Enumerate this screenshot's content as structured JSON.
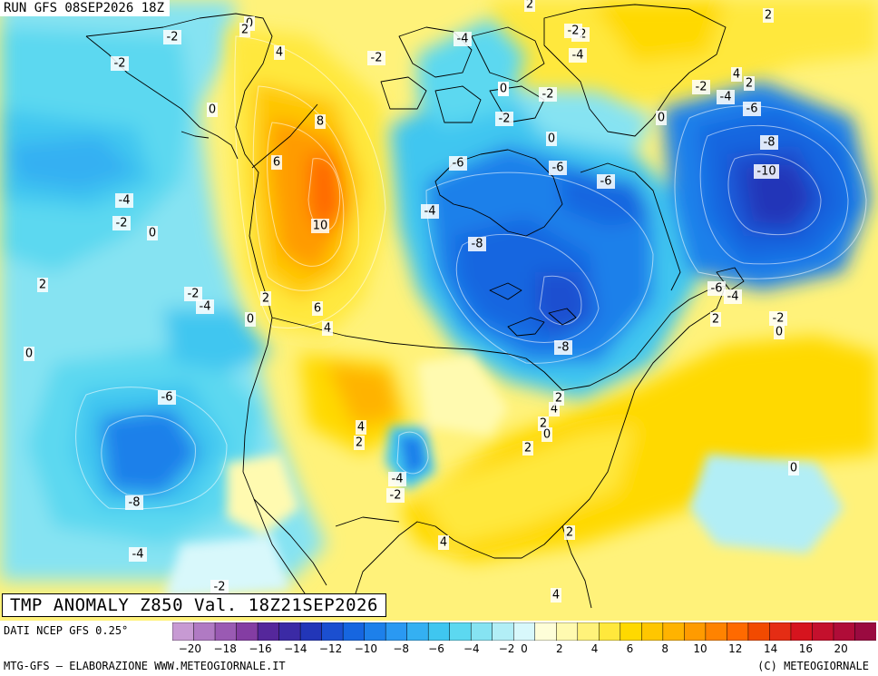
{
  "header": {
    "run_label": "RUN GFS 08SEP2026 18Z"
  },
  "title": {
    "text": "TMP ANOMALY Z850 Val. 18Z21SEP2026"
  },
  "footer": {
    "source": "DATI NCEP GFS 0.25°",
    "credit": "MTG-GFS – ELABORAZIONE WWW.METEOGIORNALE.IT",
    "copyright": "(C) METEOGIORNALE"
  },
  "colorbar": {
    "ticks": [
      "-20",
      "-18",
      "-16",
      "-14",
      "-12",
      "-10",
      "-8",
      "-6",
      "-4",
      "-2",
      "0",
      "2",
      "4",
      "6",
      "8",
      "10",
      "12",
      "14",
      "16",
      "20"
    ],
    "colors": [
      "#c79ad3",
      "#b07ac3",
      "#9a5ab3",
      "#843da3",
      "#55279b",
      "#3b2aa5",
      "#2236b8",
      "#1b4fd0",
      "#1666e0",
      "#1d80ea",
      "#2a99f2",
      "#34b0f2",
      "#3fc6f0",
      "#5cd8f0",
      "#86e3f2",
      "#b2eef6",
      "#d8f8fb",
      "#fefed8",
      "#fffab0",
      "#fff27a",
      "#ffe83c",
      "#ffd900",
      "#ffc600",
      "#ffb300",
      "#ff9b00",
      "#ff8300",
      "#ff6a00",
      "#f24a00",
      "#e52d14",
      "#d6141e",
      "#c4102d",
      "#b00c38",
      "#9a0a40"
    ],
    "tick_positions": [
      0.025,
      0.075,
      0.125,
      0.175,
      0.225,
      0.275,
      0.325,
      0.375,
      0.425,
      0.475,
      0.5,
      0.55,
      0.6,
      0.65,
      0.7,
      0.75,
      0.8,
      0.85,
      0.9,
      0.95
    ]
  },
  "contour_labels": [
    {
      "t": "0",
      "v": 0
    },
    {
      "t": "-2",
      "v": -2
    },
    {
      "t": "2",
      "v": 2
    },
    {
      "t": "-2",
      "v": -2
    },
    {
      "t": "-2",
      "v": -2
    },
    {
      "t": "4",
      "v": 4
    },
    {
      "t": "0",
      "v": 0
    },
    {
      "t": "8",
      "v": 8
    },
    {
      "t": "6",
      "v": 6
    },
    {
      "t": "-4",
      "v": -4
    },
    {
      "t": "-2",
      "v": -2
    },
    {
      "t": "0",
      "v": 0
    },
    {
      "t": "10",
      "v": 10
    },
    {
      "t": "2",
      "v": 2
    },
    {
      "t": "-2",
      "v": -2
    },
    {
      "t": "-4",
      "v": -4
    },
    {
      "t": "0",
      "v": 0
    },
    {
      "t": "2",
      "v": 2
    },
    {
      "t": "6",
      "v": 6
    },
    {
      "t": "4",
      "v": 4
    },
    {
      "t": "0",
      "v": 0
    },
    {
      "t": "-6",
      "v": -6
    },
    {
      "t": "-8",
      "v": -8
    },
    {
      "t": "-4",
      "v": -4
    },
    {
      "t": "4",
      "v": 4
    },
    {
      "t": "2",
      "v": 2
    },
    {
      "t": "-4",
      "v": -4
    },
    {
      "t": "-2",
      "v": -2
    },
    {
      "t": "4",
      "v": 4
    },
    {
      "t": "-2",
      "v": -2
    },
    {
      "t": "2",
      "v": 2
    },
    {
      "t": "-4",
      "v": -4
    },
    {
      "t": "0",
      "v": 0
    },
    {
      "t": "-2",
      "v": -2
    },
    {
      "t": "-2",
      "v": -2
    },
    {
      "t": "-6",
      "v": -6
    },
    {
      "t": "-4",
      "v": -4
    },
    {
      "t": "-6",
      "v": -6
    },
    {
      "t": "-8",
      "v": -8
    },
    {
      "t": "-6",
      "v": -6
    },
    {
      "t": "-4",
      "v": -4
    },
    {
      "t": "-2",
      "v": -2
    },
    {
      "t": "0",
      "v": 0
    },
    {
      "t": "2",
      "v": 2
    },
    {
      "t": "4",
      "v": 4
    },
    {
      "t": "2",
      "v": 2
    },
    {
      "t": "-8",
      "v": -8
    },
    {
      "t": "2",
      "v": 2
    },
    {
      "t": "0",
      "v": 0
    },
    {
      "t": "4",
      "v": 4
    },
    {
      "t": "2",
      "v": 2
    },
    {
      "t": "-2",
      "v": -2
    },
    {
      "t": "-4",
      "v": -4
    },
    {
      "t": "-6",
      "v": -6
    },
    {
      "t": "0",
      "v": 0
    },
    {
      "t": "-8",
      "v": -8
    },
    {
      "t": "-10",
      "v": -10
    },
    {
      "t": "-6",
      "v": -6
    },
    {
      "t": "-4",
      "v": -4
    },
    {
      "t": "2",
      "v": 2
    },
    {
      "t": "-2",
      "v": -2
    },
    {
      "t": "0",
      "v": 0
    },
    {
      "t": "0",
      "v": 0
    },
    {
      "t": "2",
      "v": 2
    },
    {
      "t": "4",
      "v": 4
    },
    {
      "t": "-2",
      "v": -2
    },
    {
      "t": "0",
      "v": 0
    },
    {
      "t": "2",
      "v": 2
    }
  ]
}
